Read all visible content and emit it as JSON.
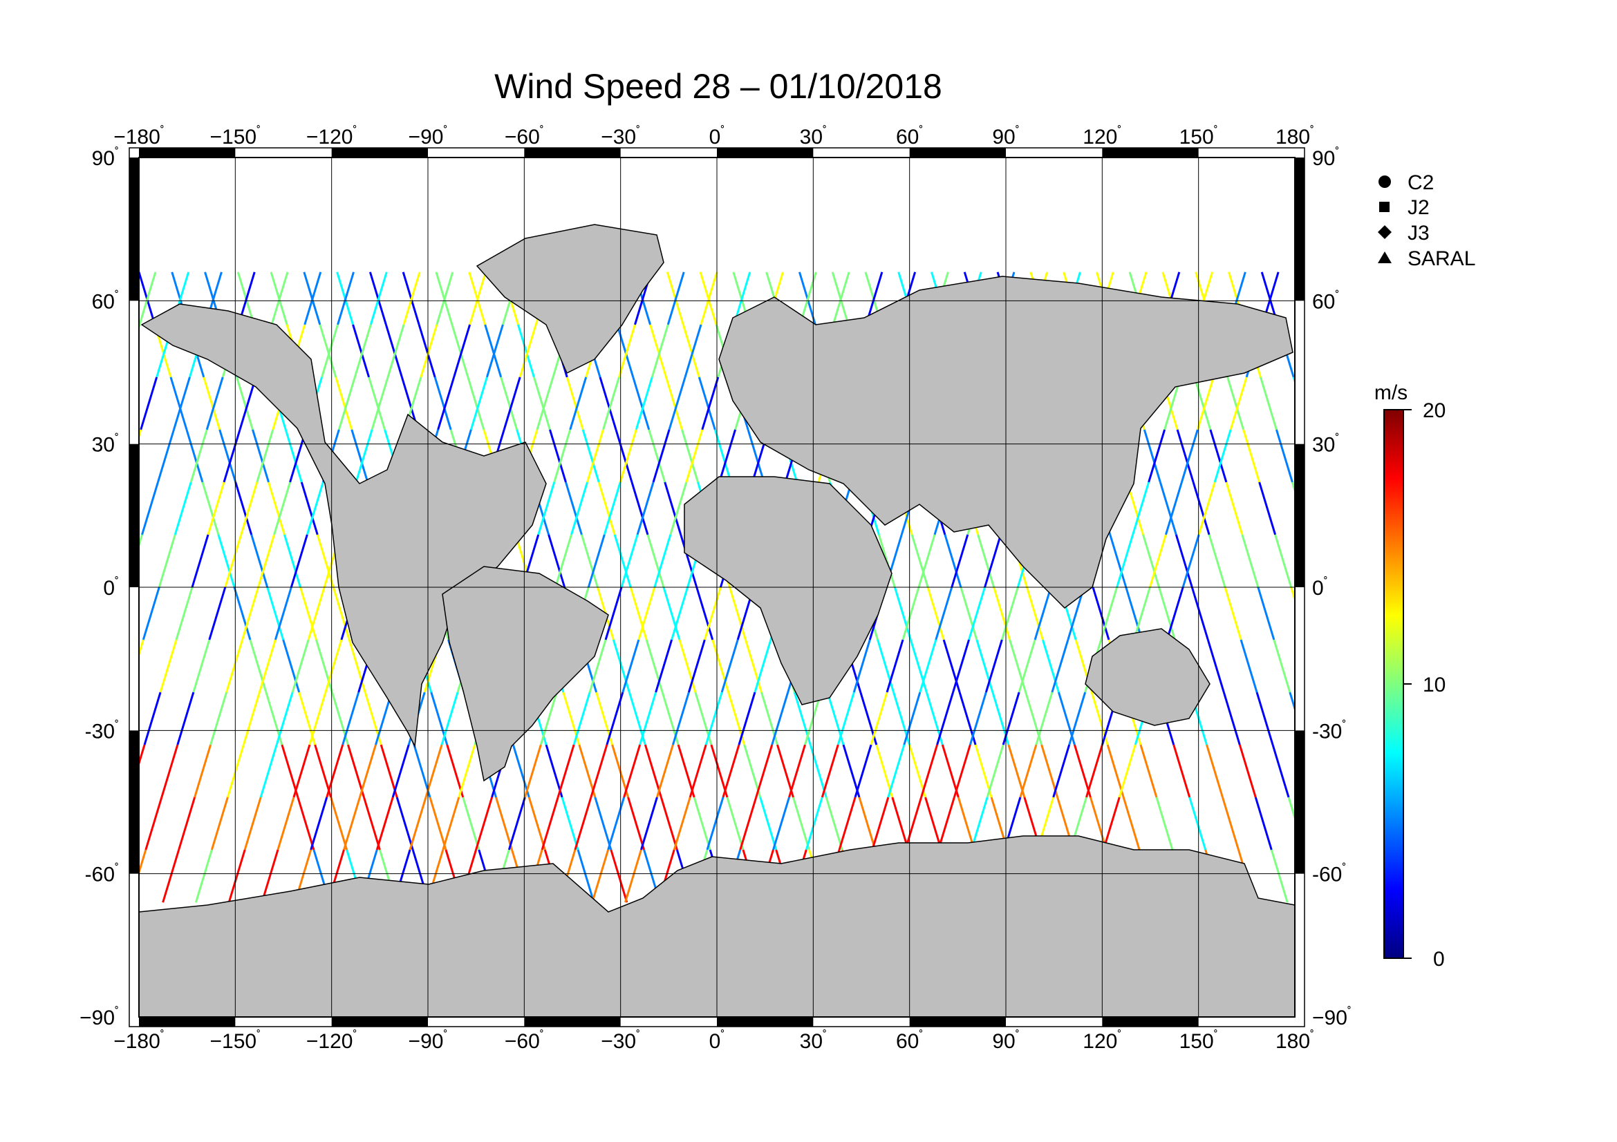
{
  "title": "Wind Speed 28 – 01/10/2018",
  "lon_ticks": [
    "−180",
    "−150",
    "−120",
    "−90",
    "−60",
    "−30",
    "0",
    "30",
    "60",
    "90",
    "120",
    "150",
    "180"
  ],
  "lat_ticks": [
    "90",
    "60",
    "30",
    "0",
    "-30",
    "-60",
    "−90"
  ],
  "degree_symbol": "˚",
  "legend": {
    "items": [
      {
        "label": "C2",
        "symbol": "circle-icon"
      },
      {
        "label": "J2",
        "symbol": "square-icon"
      },
      {
        "label": "J3",
        "symbol": "diamond-icon"
      },
      {
        "label": "SARAL",
        "symbol": "triangle-icon"
      }
    ]
  },
  "colorbar": {
    "unit": "m/s",
    "labels": [
      "20",
      "10",
      "0"
    ],
    "min": 0,
    "max": 20,
    "colors": [
      "#00007f",
      "#0000ff",
      "#007fff",
      "#00ffff",
      "#7fff7f",
      "#ffff00",
      "#ff7f00",
      "#ff0000",
      "#7f0000"
    ]
  },
  "colors": {
    "land": "#bebebe",
    "ocean": "#ffffff",
    "frame": "#000000"
  },
  "chart_data": {
    "type": "map",
    "projection": "equirectangular",
    "xlim": [
      -180,
      180
    ],
    "ylim": [
      -90,
      90
    ],
    "lon_gridlines": [
      -180,
      -150,
      -120,
      -90,
      -60,
      -30,
      0,
      30,
      60,
      90,
      120,
      150,
      180
    ],
    "lat_gridlines": [
      -90,
      -60,
      -30,
      0,
      30,
      60,
      90
    ],
    "value_range": [
      0,
      20
    ],
    "value_unit": "m/s"
  }
}
